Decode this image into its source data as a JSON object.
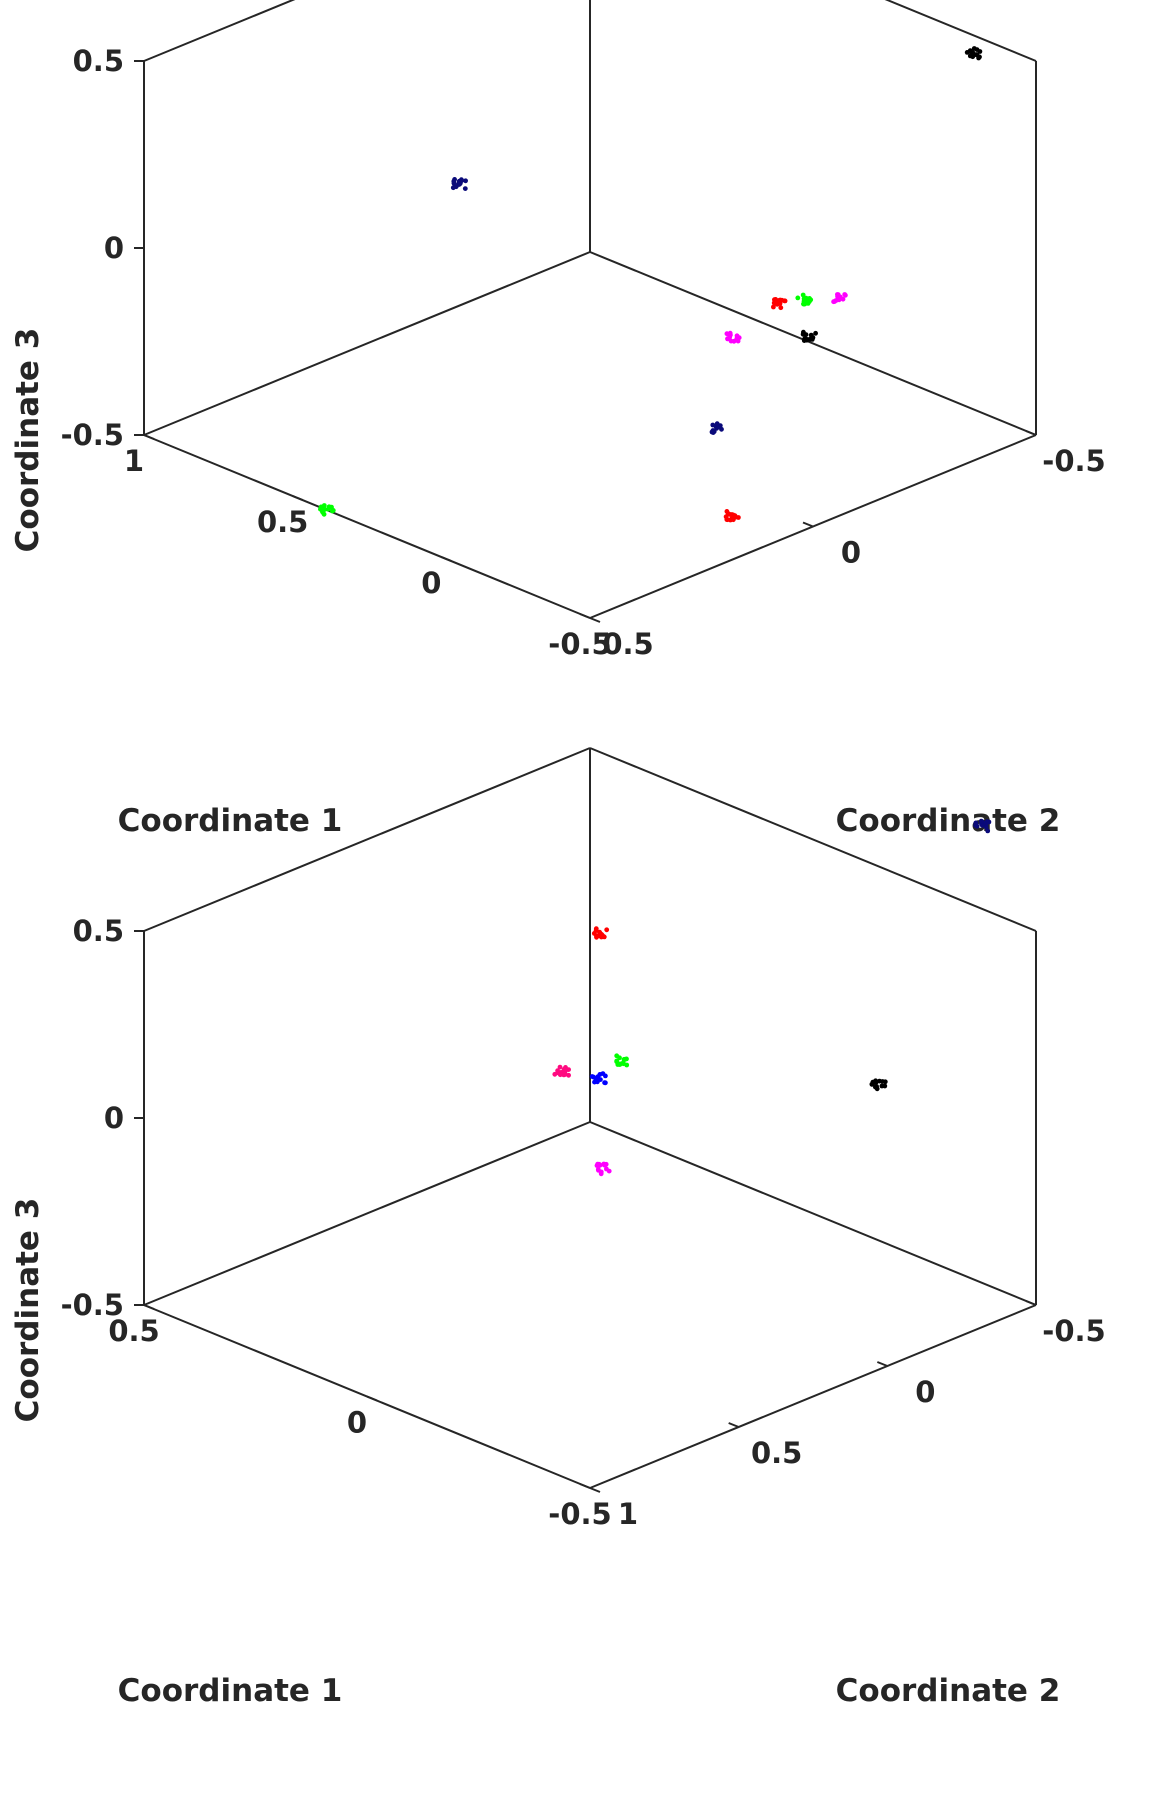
{
  "chart_data": [
    {
      "type": "scatter3d",
      "panel": "top",
      "xlabel": "Coordinate 1",
      "ylabel": "Coordinate 2",
      "zlabel": "Coordinate 3",
      "xlim": [
        -0.5,
        1
      ],
      "ylim": [
        -0.5,
        0.5
      ],
      "zlim": [
        -0.5,
        0.5
      ],
      "xticks": [
        {
          "value": 1,
          "label": "1"
        },
        {
          "value": 0.5,
          "label": "0.5"
        },
        {
          "value": 0,
          "label": "0"
        },
        {
          "value": -0.5,
          "label": "-0.5"
        }
      ],
      "yticks": [
        {
          "value": 0.5,
          "label": "0.5"
        },
        {
          "value": 0,
          "label": "0"
        },
        {
          "value": -0.5,
          "label": "-0.5"
        }
      ],
      "zticks": [
        {
          "value": 0.5,
          "label": "0.5"
        },
        {
          "value": 0,
          "label": "0"
        },
        {
          "value": -0.5,
          "label": "-0.5"
        }
      ],
      "series": [
        {
          "name": "navy",
          "color": "#0a0a7a",
          "points": [
            [
              0.84,
              -0.1,
              -0.07
            ],
            [
              -0.15,
              -0.02,
              -0.36
            ]
          ]
        },
        {
          "name": "black",
          "color": "#000000",
          "points": [
            [
              -0.44,
              -0.4,
              0.55
            ],
            [
              -0.28,
              -0.14,
              -0.13
            ]
          ]
        },
        {
          "name": "red",
          "color": "#ff0000",
          "points": [
            [
              -0.24,
              -0.1,
              -0.04
            ],
            [
              -0.29,
              0.04,
              -0.52
            ]
          ]
        },
        {
          "name": "green",
          "color": "#00ff00",
          "points": [
            [
              -0.32,
              -0.1,
              0.0
            ],
            [
              0.43,
              0.47,
              -0.53
            ]
          ]
        },
        {
          "name": "magenta",
          "color": "#ff00ff",
          "points": [
            [
              -0.38,
              -0.14,
              0.0
            ],
            [
              -0.2,
              -0.02,
              -0.1
            ]
          ]
        }
      ]
    },
    {
      "type": "scatter3d",
      "panel": "bottom",
      "xlabel": "Coordinate 1",
      "ylabel": "Coordinate 2",
      "zlabel": "Coordinate 3",
      "xlim": [
        -0.5,
        0.5
      ],
      "ylim": [
        -0.5,
        1
      ],
      "zlim": [
        -0.5,
        0.5
      ],
      "xticks": [
        {
          "value": 0.5,
          "label": "0.5"
        },
        {
          "value": 0,
          "label": "0"
        },
        {
          "value": -0.5,
          "label": "-0.5"
        }
      ],
      "yticks": [
        {
          "value": -0.5,
          "label": "-0.5"
        },
        {
          "value": 0,
          "label": "0"
        },
        {
          "value": 0.5,
          "label": "0.5"
        },
        {
          "value": 1,
          "label": "1"
        }
      ],
      "zticks": [
        {
          "value": 0.5,
          "label": "0.5"
        },
        {
          "value": 0,
          "label": "0"
        },
        {
          "value": -0.5,
          "label": "-0.5"
        }
      ],
      "series": [
        {
          "name": "navy",
          "color": "#0a0a7a",
          "points": [
            [
              -0.46,
              -0.38,
              0.8
            ]
          ]
        },
        {
          "name": "red",
          "color": "#ff0000",
          "points": [
            [
              0.37,
              -0.34,
              0.12
            ]
          ]
        },
        {
          "name": "green",
          "color": "#00ff00",
          "points": [
            [
              0.04,
              0.08,
              0.08
            ]
          ]
        },
        {
          "name": "pink",
          "color": "#ff0a80",
          "points": [
            [
              0.17,
              0.09,
              -0.01
            ]
          ]
        },
        {
          "name": "blue",
          "color": "#0000ff",
          "points": [
            [
              0.12,
              0.04,
              -0.02
            ]
          ]
        },
        {
          "name": "magenta",
          "color": "#ff00ff",
          "points": [
            [
              0.05,
              0.13,
              -0.2
            ]
          ]
        },
        {
          "name": "black",
          "color": "#000000",
          "points": [
            [
              -0.5,
              0.03,
              0.26
            ]
          ]
        }
      ]
    }
  ]
}
